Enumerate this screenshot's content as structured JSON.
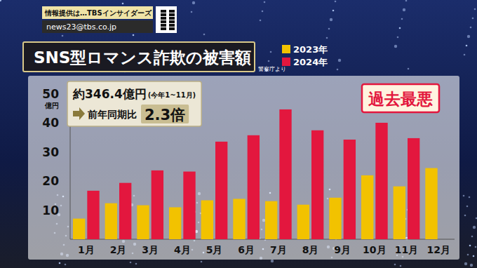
{
  "chart_data": {
    "type": "bar",
    "title": "SNS型ロマンス詐欺の被害額",
    "source": "警察庁より",
    "header": [
      "情報提供は…TBSインサイダーズ",
      "news23@tbs.co.jp"
    ],
    "ylabel": "億円",
    "categories": [
      "1月",
      "2月",
      "3月",
      "4月",
      "5月",
      "6月",
      "7月",
      "8月",
      "9月",
      "10月",
      "11月",
      "12月"
    ],
    "series": [
      {
        "name": "2023年",
        "color": "#f2c200",
        "values": [
          7.1,
          12.4,
          11.7,
          11.0,
          13.4,
          13.9,
          13.1,
          11.9,
          14.3,
          22.0,
          18.2,
          24.5
        ]
      },
      {
        "name": "2024年",
        "color": "#e3173e",
        "values": [
          16.7,
          19.4,
          23.7,
          23.3,
          33.6,
          35.8,
          44.7,
          37.5,
          34.3,
          40.1,
          34.8,
          null
        ]
      }
    ],
    "ylim": [
      0,
      50
    ],
    "yticks": [
      10,
      20,
      30,
      40,
      50
    ],
    "grid": false,
    "legend": "top",
    "annotations": [
      "約346.4億円",
      "(今年1~11月)",
      "前年同期比",
      "2.3倍",
      "過去最悪"
    ]
  }
}
